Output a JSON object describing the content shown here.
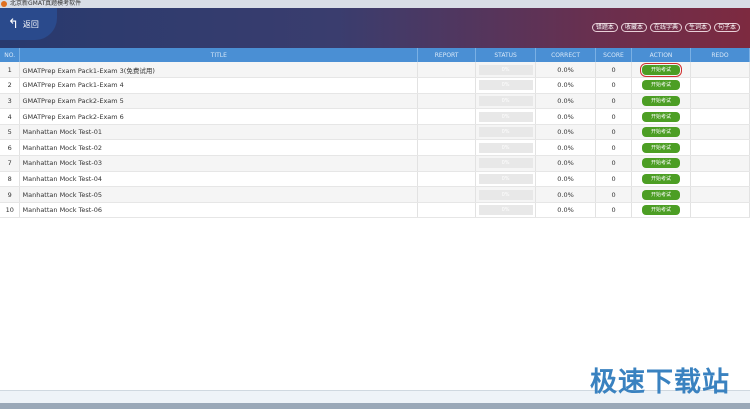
{
  "window": {
    "title": "北京新GMAT真题模考软件"
  },
  "header": {
    "back_label": "返回",
    "tools": [
      "错题本",
      "收藏本",
      "在线字典",
      "生词本",
      "句子本"
    ]
  },
  "table": {
    "columns": [
      "NO.",
      "TITLE",
      "REPORT",
      "STATUS",
      "CORRECT",
      "SCORE",
      "ACTION",
      "REDO"
    ],
    "rows": [
      {
        "no": "1",
        "title": "GMATPrep Exam Pack1-Exam 3(免费试用)",
        "status": "0%",
        "correct": "0.0%",
        "score": "0",
        "action": "开始考试",
        "selected": true
      },
      {
        "no": "2",
        "title": "GMATPrep Exam Pack1-Exam 4",
        "status": "0%",
        "correct": "0.0%",
        "score": "0",
        "action": "开始考试"
      },
      {
        "no": "3",
        "title": "GMATPrep Exam Pack2-Exam 5",
        "status": "0%",
        "correct": "0.0%",
        "score": "0",
        "action": "开始考试"
      },
      {
        "no": "4",
        "title": "GMATPrep Exam Pack2-Exam 6",
        "status": "0%",
        "correct": "0.0%",
        "score": "0",
        "action": "开始考试"
      },
      {
        "no": "5",
        "title": "Manhattan Mock Test-01",
        "status": "0%",
        "correct": "0.0%",
        "score": "0",
        "action": "开始考试"
      },
      {
        "no": "6",
        "title": "Manhattan Mock Test-02",
        "status": "0%",
        "correct": "0.0%",
        "score": "0",
        "action": "开始考试"
      },
      {
        "no": "7",
        "title": "Manhattan Mock Test-03",
        "status": "0%",
        "correct": "0.0%",
        "score": "0",
        "action": "开始考试"
      },
      {
        "no": "8",
        "title": "Manhattan Mock Test-04",
        "status": "0%",
        "correct": "0.0%",
        "score": "0",
        "action": "开始考试"
      },
      {
        "no": "9",
        "title": "Manhattan Mock Test-05",
        "status": "0%",
        "correct": "0.0%",
        "score": "0",
        "action": "开始考试"
      },
      {
        "no": "10",
        "title": "Manhattan Mock Test-06",
        "status": "0%",
        "correct": "0.0%",
        "score": "0",
        "action": "开始考试"
      }
    ]
  },
  "watermark": "极速下载站",
  "colors": {
    "header_blue": "#4a8fd4",
    "button_green": "#4c9e24",
    "highlight": "#d03030"
  }
}
